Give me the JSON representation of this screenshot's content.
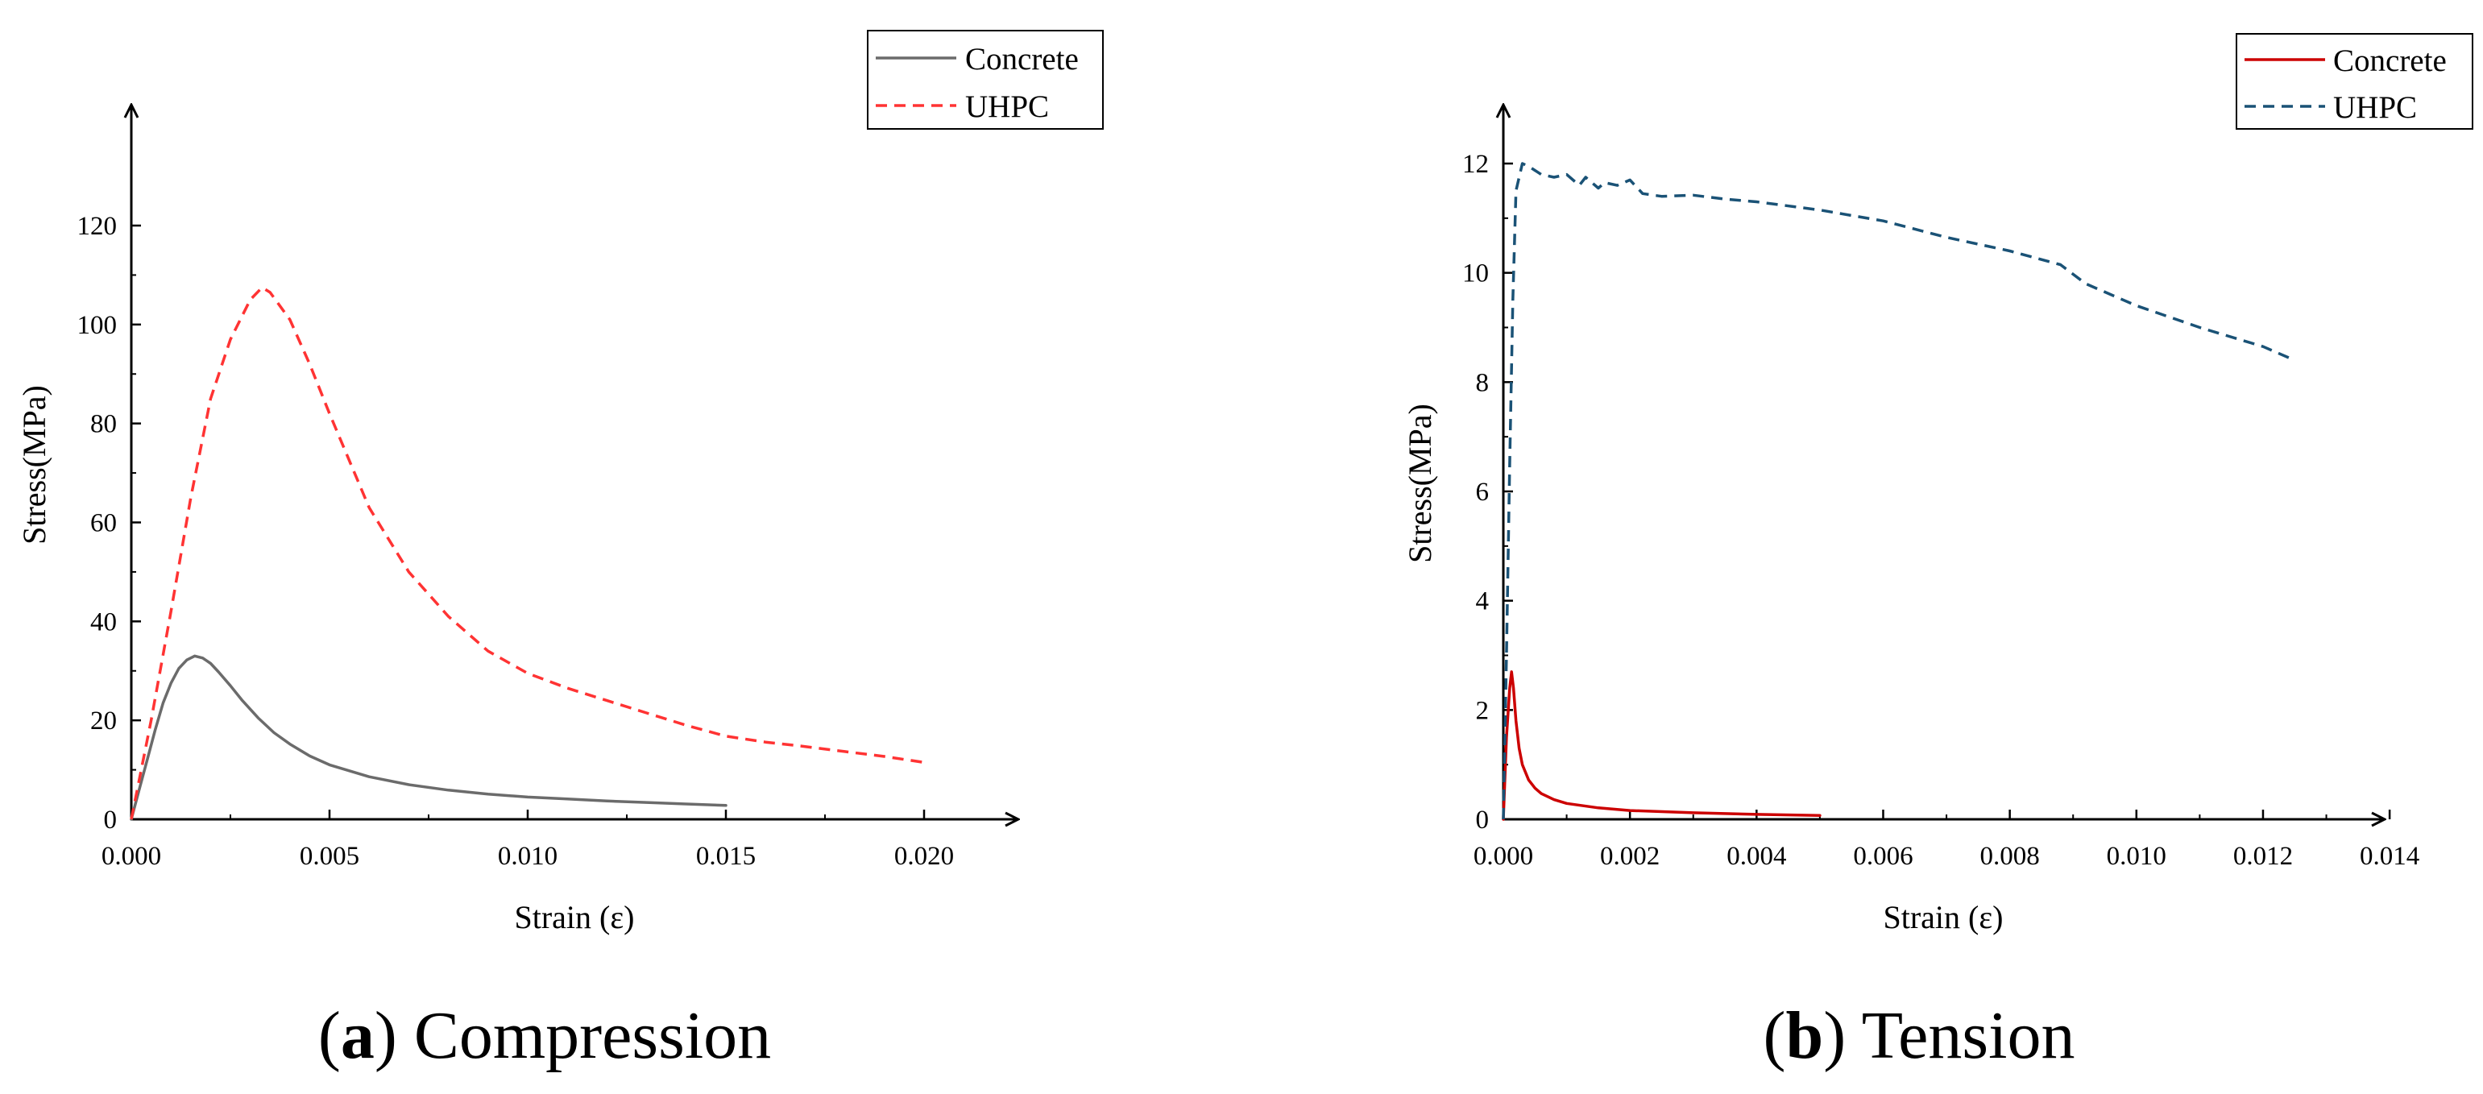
{
  "chart_data": [
    {
      "type": "line",
      "caption_letter": "a",
      "caption_text": "Compression",
      "xlabel": "Strain (ε)",
      "ylabel": "Stress(MPa)",
      "xlim": [
        0,
        0.022
      ],
      "ylim": [
        0,
        120
      ],
      "x_ticks": [
        "0.000",
        "0.005",
        "0.010",
        "0.015",
        "0.020"
      ],
      "x_tick_values": [
        0,
        0.005,
        0.01,
        0.015,
        0.02
      ],
      "y_ticks": [
        "0",
        "20",
        "40",
        "60",
        "80",
        "100",
        "120"
      ],
      "y_tick_values": [
        0,
        20,
        40,
        60,
        80,
        100,
        120
      ],
      "legend_position": "top-right",
      "series": [
        {
          "name": "Concrete",
          "color": "#6b6b6b",
          "style": "solid",
          "x": [
            0,
            0.0002,
            0.0004,
            0.0006,
            0.0008,
            0.001,
            0.0012,
            0.0014,
            0.0016,
            0.0018,
            0.002,
            0.0022,
            0.0025,
            0.0028,
            0.0032,
            0.0036,
            0.004,
            0.0045,
            0.005,
            0.006,
            0.007,
            0.008,
            0.009,
            0.01,
            0.011,
            0.012,
            0.013,
            0.014,
            0.015
          ],
          "y": [
            0,
            6,
            12,
            18,
            23.5,
            27.5,
            30.5,
            32.2,
            33,
            32.6,
            31.5,
            29.8,
            27,
            24,
            20.5,
            17.5,
            15.2,
            12.8,
            11,
            8.6,
            7,
            5.9,
            5.1,
            4.5,
            4.1,
            3.7,
            3.4,
            3.1,
            2.8
          ]
        },
        {
          "name": "UHPC",
          "color": "#ff3333",
          "style": "dashed",
          "x": [
            0,
            0.0005,
            0.001,
            0.0015,
            0.002,
            0.0025,
            0.003,
            0.0033,
            0.0035,
            0.004,
            0.0045,
            0.005,
            0.006,
            0.007,
            0.008,
            0.009,
            0.01,
            0.011,
            0.012,
            0.013,
            0.014,
            0.015,
            0.016,
            0.017,
            0.018,
            0.019,
            0.02
          ],
          "y": [
            0,
            20,
            42,
            65,
            85,
            97,
            105,
            107.5,
            106.5,
            101,
            92,
            82,
            63,
            50,
            41,
            34,
            29.5,
            26.5,
            24,
            21.5,
            19,
            16.8,
            15.6,
            14.7,
            13.7,
            12.7,
            11.5
          ]
        }
      ]
    },
    {
      "type": "line",
      "caption_letter": "b",
      "caption_text": "Tension",
      "xlabel": "Strain (ε)",
      "ylabel": "Stress(MPa)",
      "xlim": [
        0,
        0.014
      ],
      "ylim": [
        0,
        13
      ],
      "x_ticks": [
        "0.000",
        "0.002",
        "0.004",
        "0.006",
        "0.008",
        "0.010",
        "0.012",
        "0.014"
      ],
      "x_tick_values": [
        0,
        0.002,
        0.004,
        0.006,
        0.008,
        0.01,
        0.012,
        0.014
      ],
      "y_ticks": [
        "0",
        "2",
        "4",
        "6",
        "8",
        "10",
        "12"
      ],
      "y_tick_values": [
        0,
        2,
        4,
        6,
        8,
        10,
        12
      ],
      "legend_position": "top-right",
      "series": [
        {
          "name": "Concrete",
          "color": "#cc0000",
          "style": "solid",
          "x": [
            0,
            5e-05,
            0.0001,
            0.00013,
            0.00016,
            0.0002,
            0.00025,
            0.0003,
            0.0004,
            0.0005,
            0.0006,
            0.0008,
            0.001,
            0.0015,
            0.002,
            0.003,
            0.004,
            0.005
          ],
          "y": [
            0,
            1.5,
            2.4,
            2.7,
            2.4,
            1.8,
            1.3,
            1.0,
            0.72,
            0.57,
            0.47,
            0.36,
            0.29,
            0.21,
            0.16,
            0.12,
            0.09,
            0.07
          ]
        },
        {
          "name": "UHPC",
          "color": "#1a5276",
          "style": "dashed",
          "x": [
            0,
            5e-05,
            0.0001,
            0.00015,
            0.0002,
            0.0003,
            0.0004,
            0.0006,
            0.0008,
            0.001,
            0.0012,
            0.0013,
            0.0014,
            0.0015,
            0.0016,
            0.0018,
            0.002,
            0.0022,
            0.0025,
            0.003,
            0.0035,
            0.004,
            0.005,
            0.006,
            0.007,
            0.008,
            0.0088,
            0.0092,
            0.01,
            0.011,
            0.012,
            0.0125
          ],
          "y": [
            0,
            3,
            6.5,
            9.5,
            11.5,
            12,
            11.95,
            11.8,
            11.75,
            11.8,
            11.6,
            11.75,
            11.65,
            11.55,
            11.65,
            11.6,
            11.7,
            11.45,
            11.4,
            11.42,
            11.35,
            11.3,
            11.15,
            10.95,
            10.65,
            10.4,
            10.15,
            9.8,
            9.4,
            9.0,
            8.65,
            8.4
          ]
        }
      ]
    }
  ]
}
